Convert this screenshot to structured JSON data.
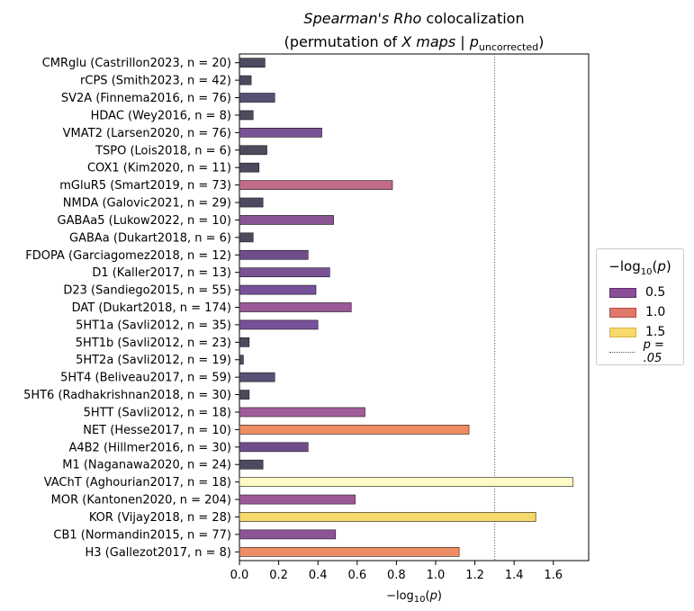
{
  "title_line1_italic": "Spearman's Rho",
  "title_line1_rest": " colocalization",
  "title_line2_prefix": "(permutation of ",
  "title_line2_italic": "X maps",
  "title_line2_mid": " | ",
  "title_line2_p": "p",
  "title_line2_sub": "uncorrected",
  "title_line2_suffix": ")",
  "legend": {
    "title_main": "−log",
    "title_sub": "10",
    "title_arg": "(p)",
    "entries": [
      {
        "label": "0.5",
        "color": "#8b4f98"
      },
      {
        "label": "1.0",
        "color": "#e0786a"
      },
      {
        "label": "1.5",
        "color": "#f7d86b"
      }
    ],
    "threshold_label": "p = .05"
  },
  "chart_data": {
    "type": "bar",
    "orientation": "horizontal",
    "xlabel": "−log10(p)",
    "xlim": [
      0,
      1.78
    ],
    "xticks": [
      "0.0",
      "0.2",
      "0.4",
      "0.6",
      "0.8",
      "1.0",
      "1.2",
      "1.4",
      "1.6"
    ],
    "threshold": 1.301,
    "categories": [
      "CMRglu (Castrillon2023, n = 20)",
      "rCPS (Smith2023, n = 42)",
      "SV2A (Finnema2016, n = 76)",
      "HDAC (Wey2016, n = 8)",
      "VMAT2 (Larsen2020, n = 76)",
      "TSPO (Lois2018, n = 6)",
      "COX1 (Kim2020, n = 11)",
      "mGluR5 (Smart2019, n = 73)",
      "NMDA (Galovic2021, n = 29)",
      "GABAa5 (Lukow2022, n = 10)",
      "GABAa (Dukart2018, n = 6)",
      "FDOPA (Garciagomez2018, n = 12)",
      "D1 (Kaller2017, n = 13)",
      "D23 (Sandiego2015, n = 55)",
      "DAT (Dukart2018, n = 174)",
      "5HT1a (Savli2012, n = 35)",
      "5HT1b (Savli2012, n = 23)",
      "5HT2a (Savli2012, n = 19)",
      "5HT4 (Beliveau2017, n = 59)",
      "5HT6 (Radhakrishnan2018, n = 30)",
      "5HTT (Savli2012, n = 18)",
      "NET (Hesse2017, n = 10)",
      "A4B2 (Hillmer2016, n = 30)",
      "M1 (Naganawa2020, n = 24)",
      "VAChT (Aghourian2017, n = 18)",
      "MOR (Kantonen2020, n = 204)",
      "KOR (Vijay2018, n = 28)",
      "CB1 (Normandin2015, n = 77)",
      "H3 (Gallezot2017, n = 8)"
    ],
    "values": [
      0.13,
      0.06,
      0.18,
      0.07,
      0.42,
      0.14,
      0.1,
      0.78,
      0.12,
      0.48,
      0.07,
      0.35,
      0.46,
      0.39,
      0.57,
      0.4,
      0.05,
      0.02,
      0.18,
      0.05,
      0.64,
      1.17,
      0.35,
      0.12,
      1.7,
      0.59,
      1.51,
      0.49,
      1.12
    ],
    "colors": [
      "#4d4a5e",
      "#4d4a5e",
      "#545175",
      "#4d4a5e",
      "#7a5296",
      "#4d4a5e",
      "#4d4a5e",
      "#c06c8a",
      "#4d4a5e",
      "#8b5595",
      "#4d4a5e",
      "#6f4d8a",
      "#7a5296",
      "#76509a",
      "#9a5a98",
      "#77509a",
      "#4d4a5e",
      "#4d4a5e",
      "#555276",
      "#4d4a5e",
      "#a05e9a",
      "#ee8d63",
      "#6f4d8a",
      "#4d4a5e",
      "#fdfbc5",
      "#9c5a97",
      "#f7d86b",
      "#8b5595",
      "#ee8d63"
    ]
  }
}
